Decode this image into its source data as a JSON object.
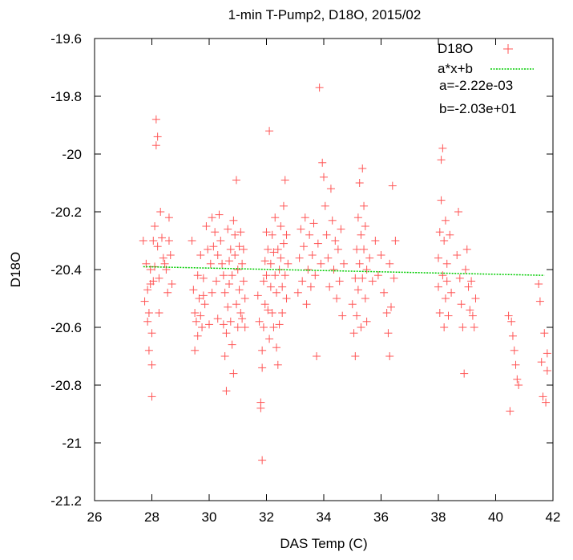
{
  "chart_data": {
    "type": "scatter",
    "title": "1-min T-Pump2, D18O, 2015/02",
    "xlabel": "DAS Temp (C)",
    "ylabel": "D18O",
    "xlim": [
      26,
      42
    ],
    "ylim": [
      -21.2,
      -19.6
    ],
    "xticks": [
      "26",
      "28",
      "30",
      "32",
      "34",
      "36",
      "38",
      "40",
      "42"
    ],
    "yticks": [
      "-19.6",
      "-19.8",
      "-20",
      "-20.2",
      "-20.4",
      "-20.6",
      "-20.8",
      "-21",
      "-21.2"
    ],
    "grid": false,
    "legend_position": "top-right",
    "series": [
      {
        "name": "D18O",
        "color": "#ff5555",
        "marker": "plus",
        "points": [
          [
            27.7,
            -20.3
          ],
          [
            27.75,
            -20.51
          ],
          [
            27.8,
            -20.38
          ],
          [
            27.85,
            -20.47
          ],
          [
            27.85,
            -20.58
          ],
          [
            27.9,
            -20.68
          ],
          [
            27.9,
            -20.55
          ],
          [
            27.95,
            -20.45
          ],
          [
            27.95,
            -20.4
          ],
          [
            28.0,
            -20.73
          ],
          [
            28.0,
            -20.62
          ],
          [
            28.0,
            -20.84
          ],
          [
            28.05,
            -20.44
          ],
          [
            28.05,
            -20.3
          ],
          [
            28.1,
            -20.39
          ],
          [
            28.1,
            -20.25
          ],
          [
            28.15,
            -19.88
          ],
          [
            28.15,
            -19.97
          ],
          [
            28.2,
            -19.94
          ],
          [
            28.2,
            -20.32
          ],
          [
            28.25,
            -20.43
          ],
          [
            28.25,
            -20.55
          ],
          [
            28.3,
            -20.2
          ],
          [
            28.35,
            -20.29
          ],
          [
            28.4,
            -20.36
          ],
          [
            28.45,
            -20.38
          ],
          [
            28.5,
            -20.4
          ],
          [
            28.55,
            -20.48
          ],
          [
            28.6,
            -20.22
          ],
          [
            28.6,
            -20.3
          ],
          [
            28.65,
            -20.35
          ],
          [
            28.7,
            -20.45
          ],
          [
            29.4,
            -20.3
          ],
          [
            29.45,
            -20.47
          ],
          [
            29.5,
            -20.55
          ],
          [
            29.5,
            -20.68
          ],
          [
            29.55,
            -20.58
          ],
          [
            29.6,
            -20.42
          ],
          [
            29.6,
            -20.63
          ],
          [
            29.65,
            -20.5
          ],
          [
            29.7,
            -20.56
          ],
          [
            29.7,
            -20.35
          ],
          [
            29.75,
            -20.6
          ],
          [
            29.8,
            -20.49
          ],
          [
            29.8,
            -20.43
          ],
          [
            29.85,
            -20.52
          ],
          [
            29.9,
            -20.25
          ],
          [
            29.95,
            -20.33
          ],
          [
            30.0,
            -20.59
          ],
          [
            30.05,
            -20.38
          ],
          [
            30.1,
            -20.22
          ],
          [
            30.1,
            -20.48
          ],
          [
            30.15,
            -20.32
          ],
          [
            30.2,
            -20.27
          ],
          [
            30.25,
            -20.44
          ],
          [
            30.3,
            -20.57
          ],
          [
            30.3,
            -20.35
          ],
          [
            30.35,
            -20.21
          ],
          [
            30.4,
            -20.3
          ],
          [
            30.45,
            -20.38
          ],
          [
            30.5,
            -20.42
          ],
          [
            30.5,
            -20.59
          ],
          [
            30.55,
            -20.48
          ],
          [
            30.55,
            -20.7
          ],
          [
            30.6,
            -20.82
          ],
          [
            30.6,
            -20.62
          ],
          [
            30.65,
            -20.26
          ],
          [
            30.65,
            -20.53
          ],
          [
            30.7,
            -20.37
          ],
          [
            30.7,
            -20.45
          ],
          [
            30.75,
            -20.58
          ],
          [
            30.75,
            -20.33
          ],
          [
            30.8,
            -20.42
          ],
          [
            30.8,
            -20.66
          ],
          [
            30.85,
            -20.23
          ],
          [
            30.85,
            -20.76
          ],
          [
            30.9,
            -20.28
          ],
          [
            30.9,
            -20.35
          ],
          [
            30.95,
            -20.09
          ],
          [
            30.95,
            -20.52
          ],
          [
            31.0,
            -20.4
          ],
          [
            31.0,
            -20.6
          ],
          [
            31.05,
            -20.32
          ],
          [
            31.05,
            -20.47
          ],
          [
            31.1,
            -20.55
          ],
          [
            31.1,
            -20.27
          ],
          [
            31.15,
            -20.38
          ],
          [
            31.15,
            -20.57
          ],
          [
            31.2,
            -20.44
          ],
          [
            31.2,
            -20.33
          ],
          [
            31.25,
            -20.5
          ],
          [
            31.25,
            -20.6
          ],
          [
            31.7,
            -20.49
          ],
          [
            31.75,
            -20.58
          ],
          [
            31.8,
            -20.86
          ],
          [
            31.8,
            -20.88
          ],
          [
            31.85,
            -20.68
          ],
          [
            31.85,
            -20.74
          ],
          [
            31.85,
            -21.06
          ],
          [
            31.9,
            -20.44
          ],
          [
            31.9,
            -20.6
          ],
          [
            31.95,
            -20.37
          ],
          [
            31.95,
            -20.52
          ],
          [
            32.0,
            -20.27
          ],
          [
            32.0,
            -20.42
          ],
          [
            32.05,
            -20.33
          ],
          [
            32.05,
            -20.54
          ],
          [
            32.1,
            -19.92
          ],
          [
            32.1,
            -20.64
          ],
          [
            32.15,
            -20.46
          ],
          [
            32.15,
            -20.38
          ],
          [
            32.2,
            -20.28
          ],
          [
            32.2,
            -20.55
          ],
          [
            32.25,
            -20.6
          ],
          [
            32.25,
            -20.34
          ],
          [
            32.3,
            -20.42
          ],
          [
            32.3,
            -20.22
          ],
          [
            32.35,
            -20.48
          ],
          [
            32.35,
            -20.67
          ],
          [
            32.4,
            -20.73
          ],
          [
            32.4,
            -20.33
          ],
          [
            32.45,
            -20.4
          ],
          [
            32.45,
            -20.59
          ],
          [
            32.5,
            -20.25
          ],
          [
            32.5,
            -20.36
          ],
          [
            32.55,
            -20.46
          ],
          [
            32.55,
            -20.55
          ],
          [
            32.6,
            -20.18
          ],
          [
            32.6,
            -20.31
          ],
          [
            32.65,
            -20.42
          ],
          [
            32.65,
            -20.09
          ],
          [
            32.7,
            -20.28
          ],
          [
            32.7,
            -20.5
          ],
          [
            32.75,
            -20.38
          ],
          [
            33.1,
            -20.48
          ],
          [
            33.15,
            -20.36
          ],
          [
            33.2,
            -20.26
          ],
          [
            33.25,
            -20.44
          ],
          [
            33.3,
            -20.32
          ],
          [
            33.35,
            -20.22
          ],
          [
            33.4,
            -20.52
          ],
          [
            33.45,
            -20.4
          ],
          [
            33.5,
            -20.28
          ],
          [
            33.55,
            -20.46
          ],
          [
            33.6,
            -20.35
          ],
          [
            33.65,
            -20.24
          ],
          [
            33.7,
            -20.42
          ],
          [
            33.75,
            -20.7
          ],
          [
            33.8,
            -20.31
          ],
          [
            33.85,
            -19.77
          ],
          [
            33.9,
            -20.38
          ],
          [
            33.95,
            -20.03
          ],
          [
            34.0,
            -20.08
          ],
          [
            34.05,
            -20.18
          ],
          [
            34.1,
            -20.28
          ],
          [
            34.15,
            -20.36
          ],
          [
            34.2,
            -20.46
          ],
          [
            34.25,
            -20.12
          ],
          [
            34.3,
            -20.23
          ],
          [
            34.35,
            -20.4
          ],
          [
            34.4,
            -20.3
          ],
          [
            34.45,
            -20.5
          ],
          [
            34.5,
            -20.33
          ],
          [
            34.55,
            -20.44
          ],
          [
            34.6,
            -20.26
          ],
          [
            34.65,
            -20.56
          ],
          [
            34.7,
            -20.38
          ],
          [
            35.0,
            -20.52
          ],
          [
            35.05,
            -20.62
          ],
          [
            35.1,
            -20.7
          ],
          [
            35.1,
            -20.43
          ],
          [
            35.15,
            -20.33
          ],
          [
            35.15,
            -20.56
          ],
          [
            35.2,
            -20.22
          ],
          [
            35.2,
            -20.47
          ],
          [
            35.25,
            -20.1
          ],
          [
            35.25,
            -20.38
          ],
          [
            35.3,
            -20.28
          ],
          [
            35.3,
            -20.6
          ],
          [
            35.35,
            -20.05
          ],
          [
            35.35,
            -20.43
          ],
          [
            35.4,
            -20.18
          ],
          [
            35.4,
            -20.33
          ],
          [
            35.45,
            -20.5
          ],
          [
            35.45,
            -20.25
          ],
          [
            35.5,
            -20.4
          ],
          [
            35.5,
            -20.58
          ],
          [
            35.6,
            -20.36
          ],
          [
            35.7,
            -20.44
          ],
          [
            35.8,
            -20.3
          ],
          [
            35.9,
            -20.42
          ],
          [
            36.0,
            -20.35
          ],
          [
            36.1,
            -20.48
          ],
          [
            36.2,
            -20.55
          ],
          [
            36.25,
            -20.62
          ],
          [
            36.3,
            -20.7
          ],
          [
            36.3,
            -20.38
          ],
          [
            36.35,
            -20.53
          ],
          [
            36.4,
            -20.11
          ],
          [
            36.45,
            -20.43
          ],
          [
            36.5,
            -20.3
          ],
          [
            38.0,
            -20.36
          ],
          [
            38.0,
            -20.46
          ],
          [
            38.05,
            -20.55
          ],
          [
            38.05,
            -20.27
          ],
          [
            38.1,
            -20.02
          ],
          [
            38.1,
            -20.16
          ],
          [
            38.15,
            -19.98
          ],
          [
            38.15,
            -20.42
          ],
          [
            38.2,
            -20.6
          ],
          [
            38.2,
            -20.3
          ],
          [
            38.25,
            -20.23
          ],
          [
            38.25,
            -20.5
          ],
          [
            38.3,
            -20.38
          ],
          [
            38.3,
            -20.44
          ],
          [
            38.35,
            -20.56
          ],
          [
            38.4,
            -20.28
          ],
          [
            38.45,
            -20.48
          ],
          [
            38.65,
            -20.35
          ],
          [
            38.7,
            -20.2
          ],
          [
            38.75,
            -20.43
          ],
          [
            38.8,
            -20.52
          ],
          [
            38.85,
            -20.6
          ],
          [
            38.9,
            -20.76
          ],
          [
            38.95,
            -20.4
          ],
          [
            39.0,
            -20.33
          ],
          [
            39.05,
            -20.46
          ],
          [
            39.1,
            -20.54
          ],
          [
            39.15,
            -20.44
          ],
          [
            39.2,
            -20.56
          ],
          [
            39.25,
            -20.6
          ],
          [
            39.3,
            -20.5
          ],
          [
            40.45,
            -20.56
          ],
          [
            40.5,
            -20.89
          ],
          [
            40.55,
            -20.58
          ],
          [
            40.6,
            -20.63
          ],
          [
            40.65,
            -20.68
          ],
          [
            40.7,
            -20.73
          ],
          [
            40.75,
            -20.78
          ],
          [
            40.8,
            -20.8
          ],
          [
            41.5,
            -20.45
          ],
          [
            41.55,
            -20.51
          ],
          [
            41.6,
            -20.72
          ],
          [
            41.65,
            -20.84
          ],
          [
            41.7,
            -20.62
          ],
          [
            41.75,
            -20.86
          ],
          [
            41.8,
            -20.69
          ],
          [
            41.8,
            -20.75
          ]
        ]
      },
      {
        "name": "a*x+b",
        "color": "#00cc00",
        "line_style": "dotted",
        "x": [
          27.7,
          41.7
        ],
        "y": [
          -20.39,
          -20.42
        ]
      }
    ],
    "annotations": [
      "a=-2.22e-03",
      "b=-2.03e+01"
    ]
  }
}
